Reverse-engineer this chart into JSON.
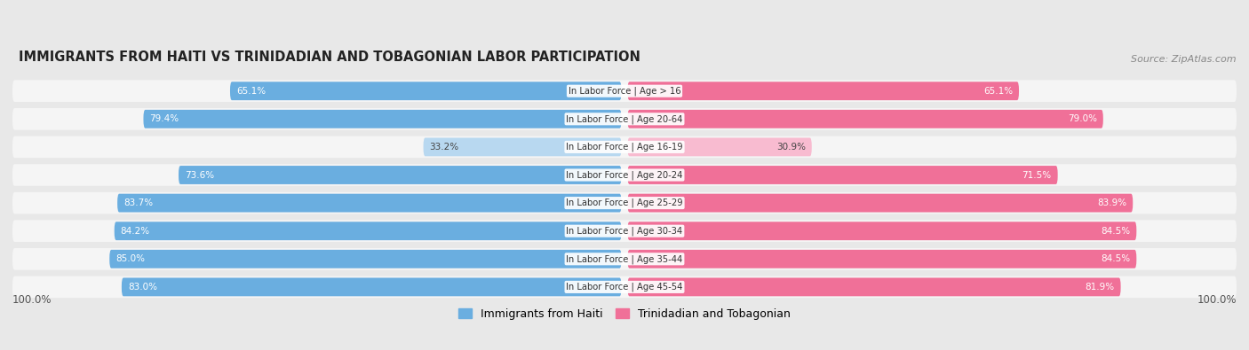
{
  "title": "IMMIGRANTS FROM HAITI VS TRINIDADIAN AND TOBAGONIAN LABOR PARTICIPATION",
  "source": "Source: ZipAtlas.com",
  "categories": [
    "In Labor Force | Age > 16",
    "In Labor Force | Age 20-64",
    "In Labor Force | Age 16-19",
    "In Labor Force | Age 20-24",
    "In Labor Force | Age 25-29",
    "In Labor Force | Age 30-34",
    "In Labor Force | Age 35-44",
    "In Labor Force | Age 45-54"
  ],
  "haiti_values": [
    65.1,
    79.4,
    33.2,
    73.6,
    83.7,
    84.2,
    85.0,
    83.0
  ],
  "tnt_values": [
    65.1,
    79.0,
    30.9,
    71.5,
    83.9,
    84.5,
    84.5,
    81.9
  ],
  "haiti_color": "#6aaee0",
  "tnt_color": "#f07098",
  "haiti_light_color": "#b8d8f0",
  "tnt_light_color": "#f8bbd0",
  "background_color": "#e8e8e8",
  "row_bg_color": "#f5f5f5",
  "max_value": 100.0,
  "legend_haiti": "Immigrants from Haiti",
  "legend_tnt": "Trinidadian and Tobagonian"
}
